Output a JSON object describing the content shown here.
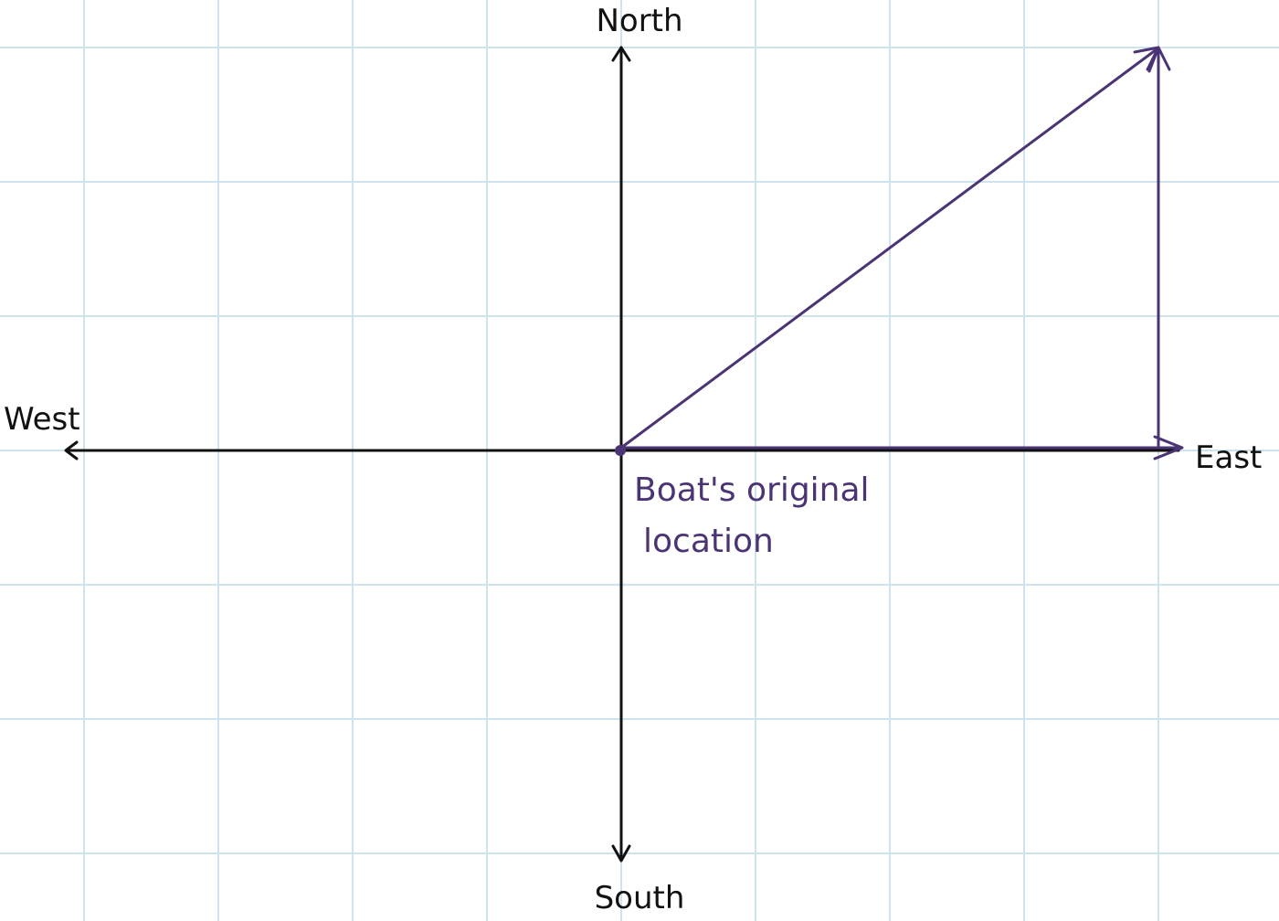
{
  "labels": {
    "north": "North",
    "south": "South",
    "east": "East",
    "west": "West",
    "origin_line1": "Boat's original",
    "origin_line2": "location"
  },
  "vectors": {
    "east_leg": "east",
    "north_leg": "north",
    "resultant": "north-east"
  },
  "colors": {
    "grid": "#cfe3ec",
    "axes": "#111111",
    "vectors": "#4b3474",
    "annotation": "#4b3474",
    "background": "#ffffff"
  }
}
